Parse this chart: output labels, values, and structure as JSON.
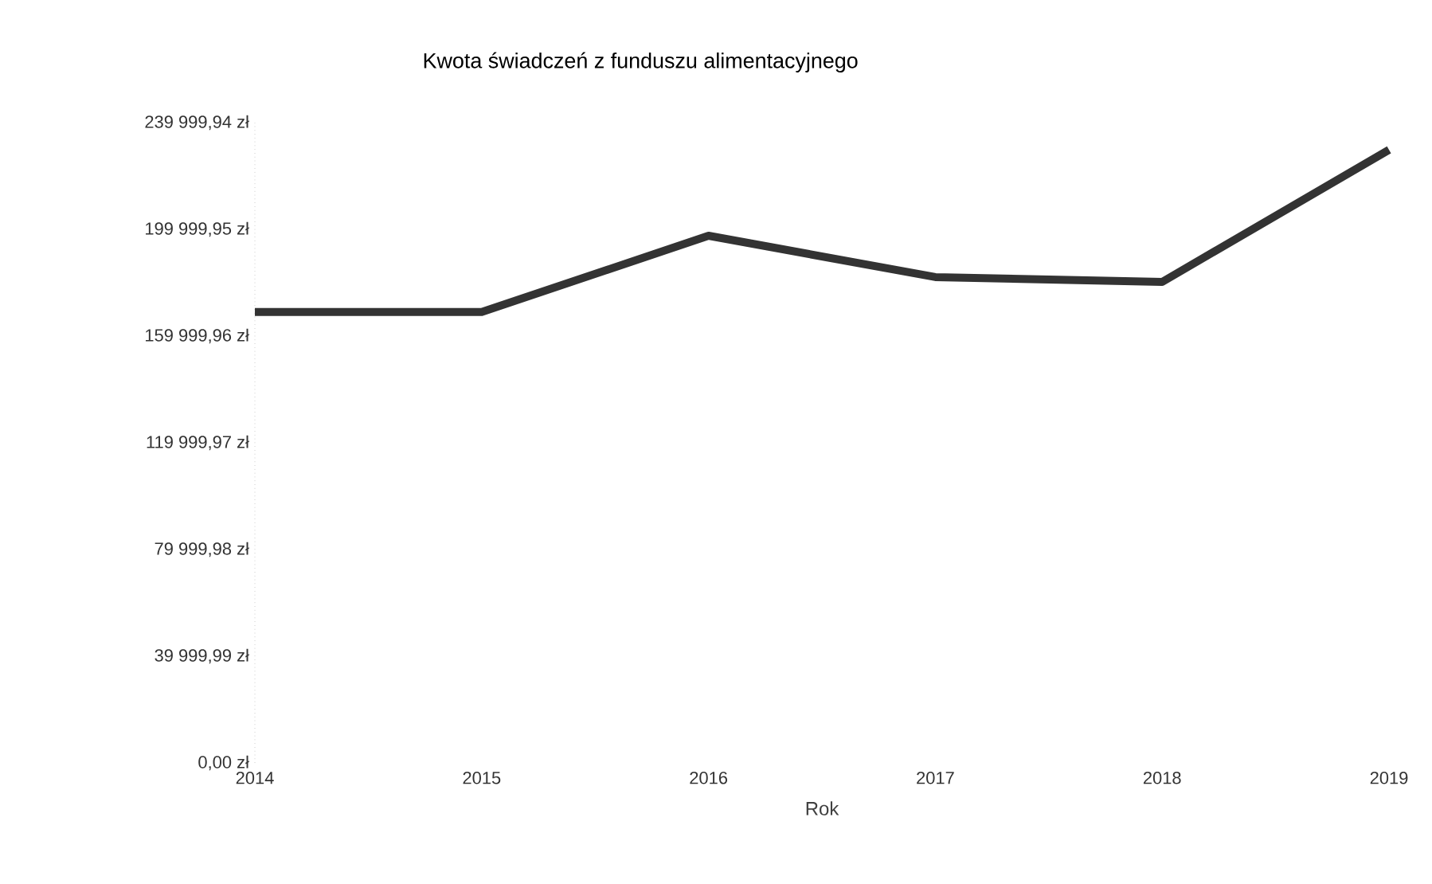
{
  "chart_data": {
    "type": "line",
    "title": "Kwota świadczeń z funduszu alimentacyjnego",
    "xlabel": "Rok",
    "x": [
      2014,
      2015,
      2016,
      2017,
      2018,
      2019
    ],
    "series": [
      {
        "color": "#333333",
        "values": [
          169000,
          169000,
          197600,
          182100,
          180300,
          229800
        ]
      }
    ],
    "xlim": [
      2014,
      2019
    ],
    "xticks": [
      2014,
      2015,
      2016,
      2017,
      2018,
      2019
    ],
    "ylim": [
      0,
      239999.94
    ],
    "yticks": [
      {
        "value": 0,
        "label": "0,00 zł"
      },
      {
        "value": 39999.99,
        "label": "39 999,99 zł"
      },
      {
        "value": 79999.98,
        "label": "79 999,98 zł"
      },
      {
        "value": 119999.97,
        "label": "119 999,97 zł"
      },
      {
        "value": 159999.96,
        "label": "159 999,96 zł"
      },
      {
        "value": 199999.95,
        "label": "199 999,95 zł"
      },
      {
        "value": 239999.94,
        "label": "239 999,94 zł"
      }
    ],
    "grid": false,
    "marker": "none",
    "line_style": "solid"
  }
}
